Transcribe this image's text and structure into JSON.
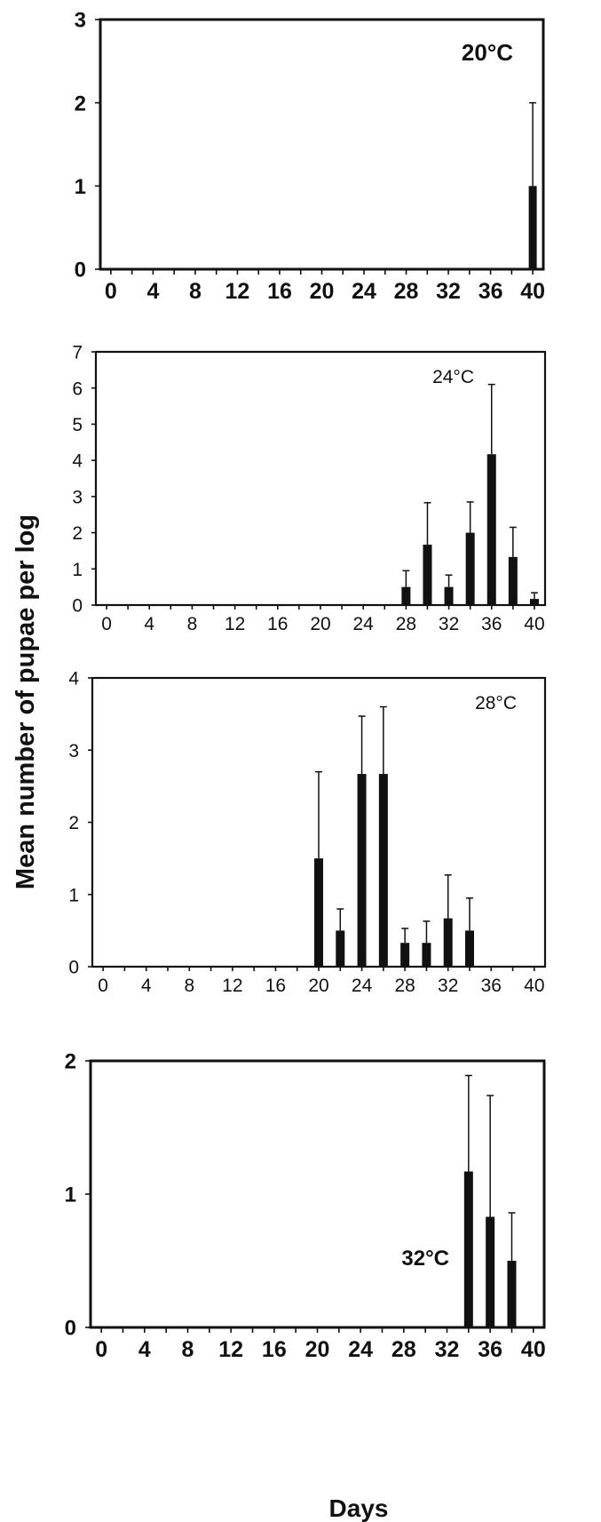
{
  "figure": {
    "ylabel": "Mean number of pupae per log",
    "xlabel": "Days"
  },
  "chart_data": [
    {
      "type": "bar",
      "title": "20°C",
      "x_ticks": [
        "0",
        "4",
        "8",
        "12",
        "16",
        "20",
        "24",
        "28",
        "32",
        "36",
        "40"
      ],
      "x_range": [
        -1,
        41
      ],
      "y_ticks": [
        "0",
        "1",
        "2",
        "3"
      ],
      "ylim": [
        0,
        3
      ],
      "grid": false,
      "x": [
        40
      ],
      "values": [
        1
      ],
      "error": [
        1
      ],
      "color": "#111111"
    },
    {
      "type": "bar",
      "title": "24°C",
      "x_ticks": [
        "0",
        "4",
        "8",
        "12",
        "16",
        "20",
        "24",
        "28",
        "32",
        "36",
        "40"
      ],
      "x_range": [
        -1,
        41
      ],
      "y_ticks": [
        "0",
        "1",
        "2",
        "3",
        "4",
        "5",
        "6",
        "7"
      ],
      "ylim": [
        0,
        7
      ],
      "grid": false,
      "x": [
        28,
        30,
        32,
        34,
        36,
        38,
        40
      ],
      "values": [
        0.5,
        1.67,
        0.5,
        2.0,
        4.17,
        1.33,
        0.17
      ],
      "error": [
        0.45,
        1.16,
        0.33,
        0.85,
        1.93,
        0.82,
        0.17
      ],
      "color": "#111111"
    },
    {
      "type": "bar",
      "title": "28°C",
      "x_ticks": [
        "0",
        "4",
        "8",
        "12",
        "16",
        "20",
        "24",
        "28",
        "32",
        "36",
        "40"
      ],
      "x_range": [
        -1,
        41
      ],
      "y_ticks": [
        "0",
        "1",
        "2",
        "3",
        "4"
      ],
      "ylim": [
        0,
        4
      ],
      "grid": false,
      "x": [
        20,
        22,
        24,
        26,
        28,
        30,
        32,
        34
      ],
      "values": [
        1.5,
        0.5,
        2.67,
        2.67,
        0.33,
        0.33,
        0.67,
        0.5
      ],
      "error": [
        1.2,
        0.3,
        0.8,
        0.93,
        0.2,
        0.3,
        0.6,
        0.45
      ],
      "color": "#111111"
    },
    {
      "type": "bar",
      "title": "32°C",
      "x_ticks": [
        "0",
        "4",
        "8",
        "12",
        "16",
        "20",
        "24",
        "28",
        "32",
        "36",
        "40"
      ],
      "x_range": [
        -1,
        41
      ],
      "y_ticks": [
        "0",
        "1",
        "2"
      ],
      "ylim": [
        0,
        2
      ],
      "grid": false,
      "x": [
        34,
        36,
        38
      ],
      "values": [
        1.17,
        0.83,
        0.5
      ],
      "error": [
        0.72,
        0.91,
        0.36
      ],
      "color": "#111111"
    }
  ]
}
